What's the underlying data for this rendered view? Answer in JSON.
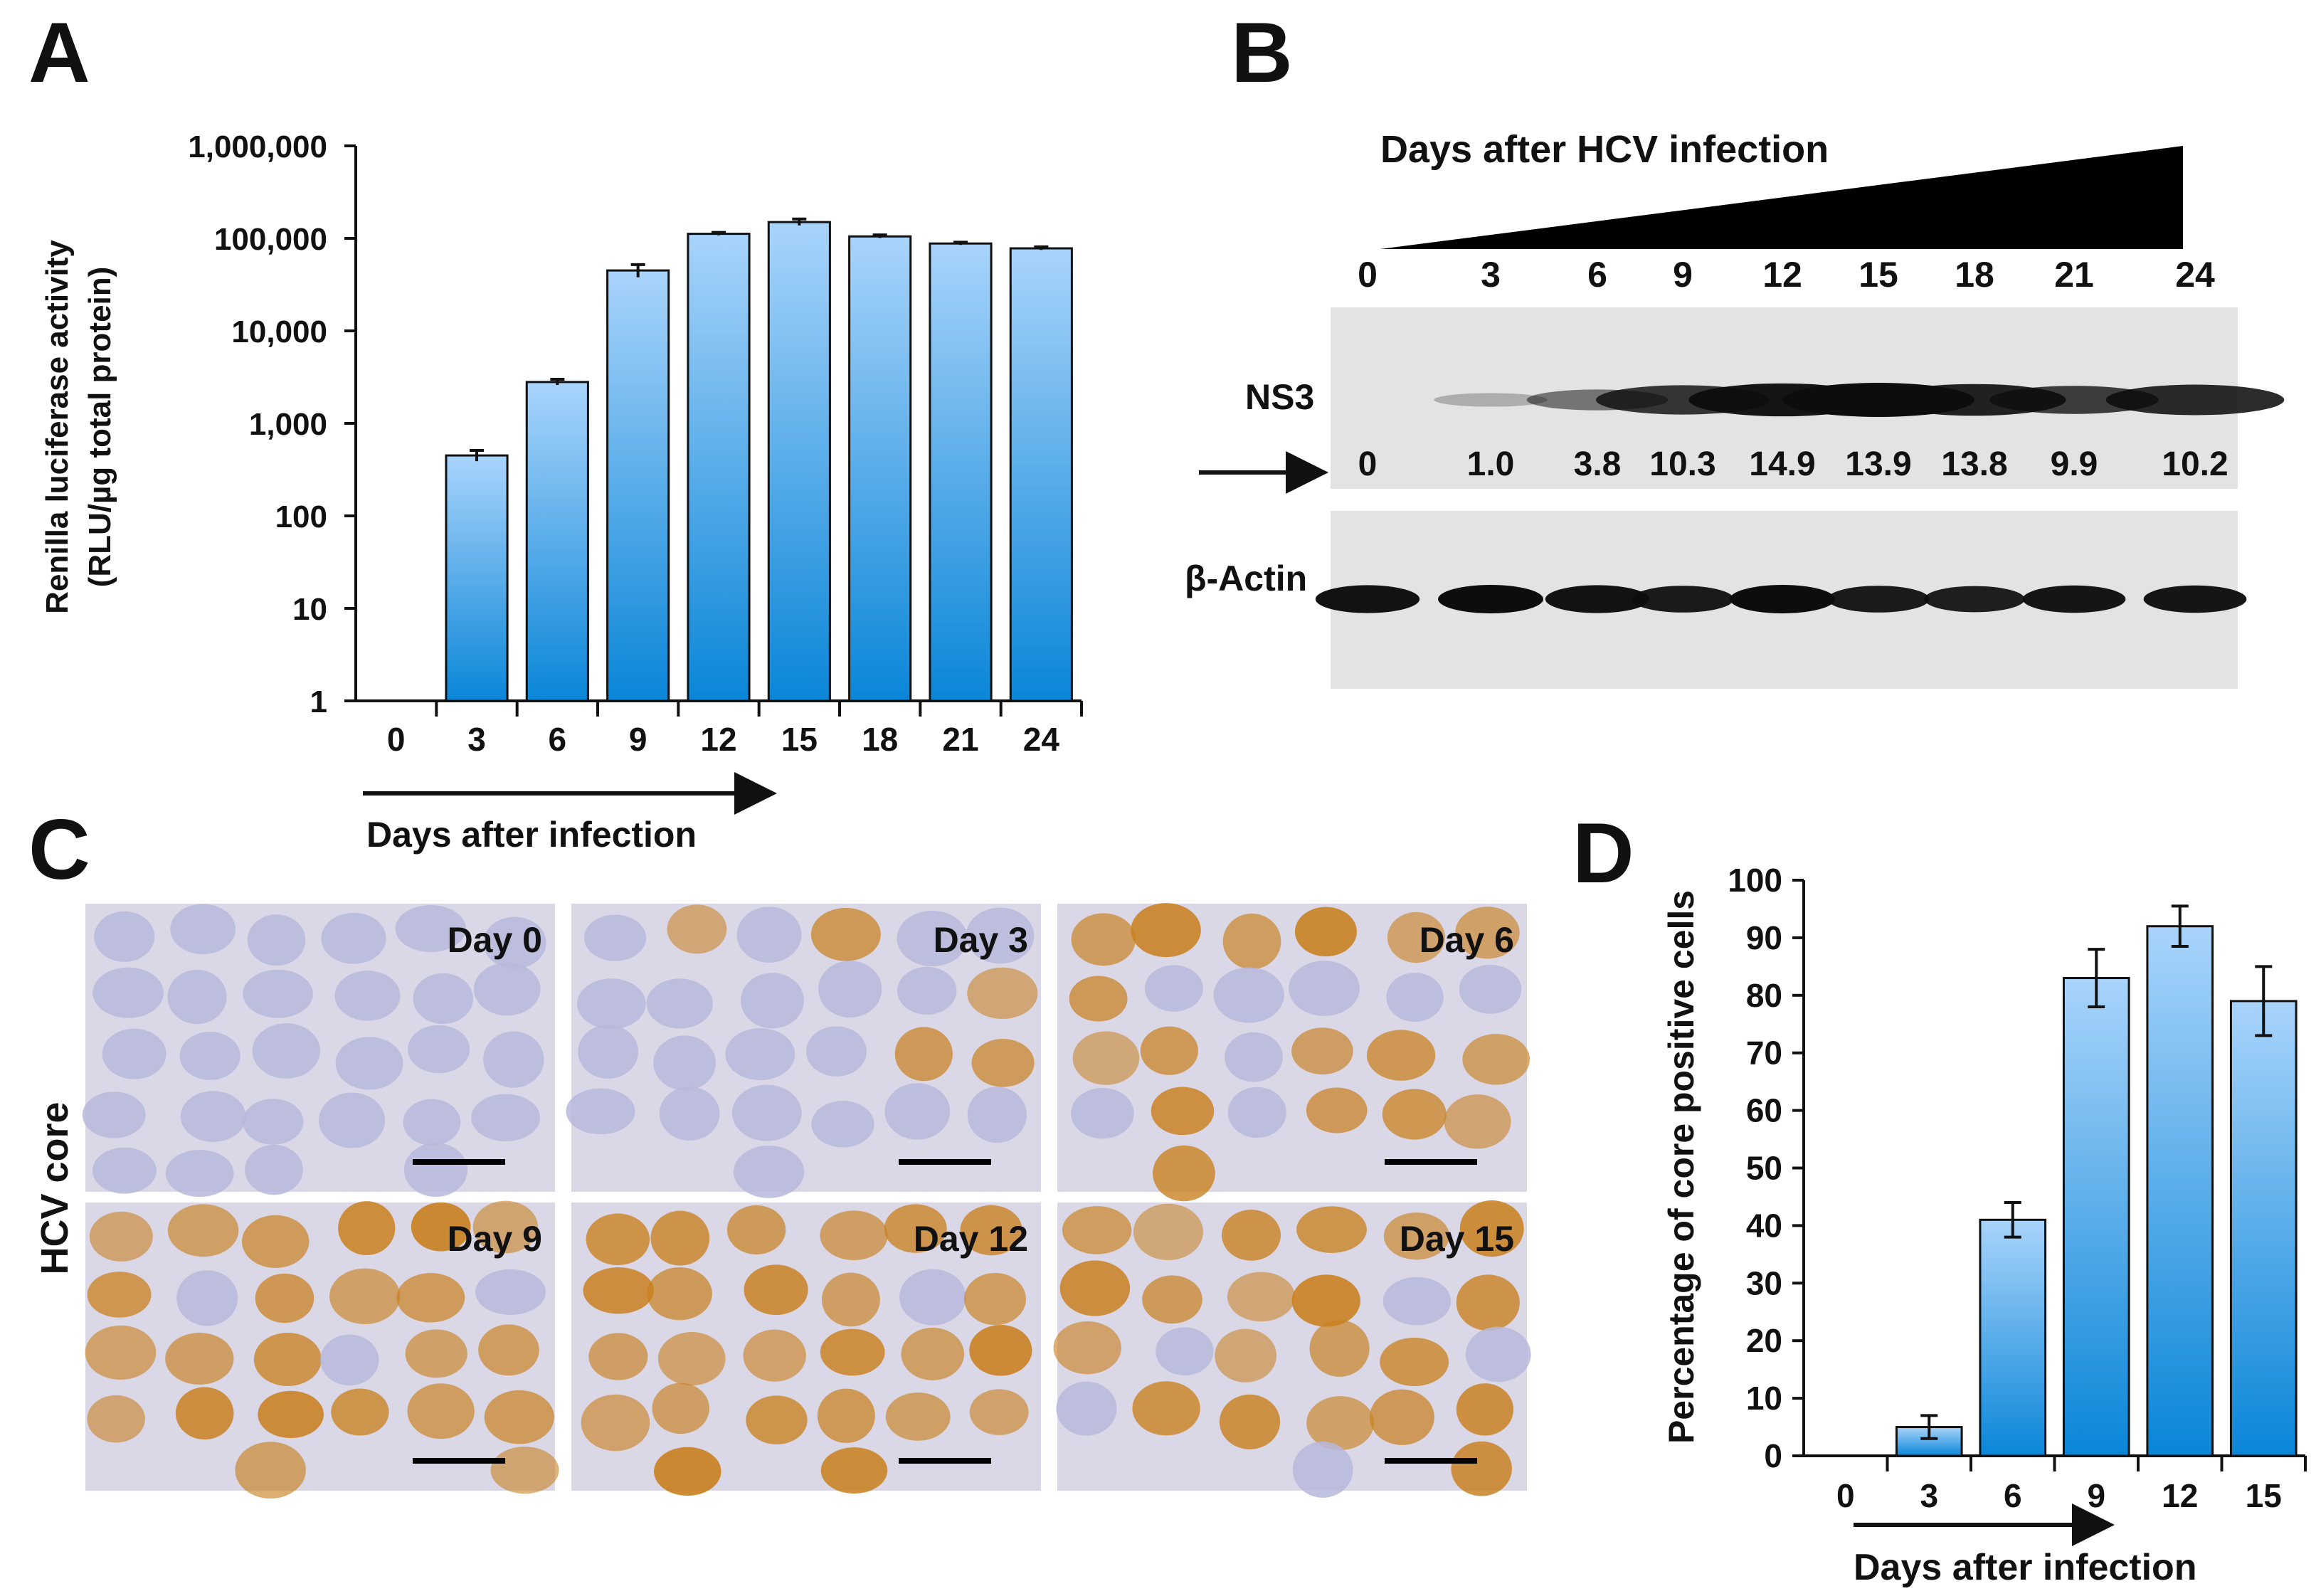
{
  "colors": {
    "bar_top": "#a9d4fb",
    "bar_bottom": "#0a86d8",
    "axis": "#111111",
    "blot_bg": "#e3e3e3",
    "band": "#0d0d0d",
    "stain_bg": "#dad7e6",
    "nucleus": "#b7b8dc",
    "stain_brown": "#c9801e"
  },
  "panels": {
    "A": {
      "label": "A"
    },
    "B": {
      "label": "B",
      "header": "Days after HCV infection",
      "days": [
        "0",
        "3",
        "6",
        "9",
        "12",
        "15",
        "18",
        "21",
        "24"
      ],
      "ns3_label": "NS3",
      "actin_label": "β-Actin",
      "quant_labels": [
        "0",
        "1.0",
        "3.8",
        "10.3",
        "14.9",
        "13.9",
        "13.8",
        "9.9",
        "10.2"
      ],
      "ns3_intensity": [
        0,
        0.15,
        0.45,
        0.8,
        0.95,
        1.0,
        0.9,
        0.75,
        0.85
      ],
      "actin_intensity": [
        0.95,
        1.0,
        0.95,
        0.85,
        1.0,
        0.85,
        0.8,
        0.9,
        0.9
      ]
    },
    "C": {
      "label": "C",
      "side_label": "HCV core",
      "images": [
        {
          "title": "Day 0",
          "stain": 0.0
        },
        {
          "title": "Day 3",
          "stain": 0.15
        },
        {
          "title": "Day 6",
          "stain": 0.55
        },
        {
          "title": "Day 9",
          "stain": 0.85
        },
        {
          "title": "Day 12",
          "stain": 0.95
        },
        {
          "title": "Day 15",
          "stain": 0.8
        }
      ]
    },
    "D": {
      "label": "D"
    }
  },
  "chart_data": [
    {
      "id": "A",
      "type": "bar",
      "scale": "log10",
      "categories": [
        "0",
        "3",
        "6",
        "9",
        "12",
        "15",
        "18",
        "21",
        "24"
      ],
      "values": [
        0,
        450,
        2800,
        45000,
        112000,
        150000,
        105000,
        88000,
        78000
      ],
      "errors": [
        0,
        60,
        200,
        7000,
        4000,
        12000,
        4000,
        3000,
        3000
      ],
      "ylabel_line1": "Renilla luciferase activity",
      "ylabel_line2": "(RLU/µg total protein)",
      "yticks": [
        "1",
        "10",
        "100",
        "1,000",
        "10,000",
        "100,000",
        "1,000,000"
      ],
      "ylim": [
        1,
        1000000
      ],
      "xlabel": "Days after infection"
    },
    {
      "id": "D",
      "type": "bar",
      "categories": [
        "0",
        "3",
        "6",
        "9",
        "12",
        "15"
      ],
      "values": [
        0,
        5,
        41,
        83,
        92,
        79
      ],
      "errors": [
        0,
        2,
        3,
        5,
        3.5,
        6
      ],
      "ylabel": "Percentage of core positive cells",
      "yticks": [
        "0",
        "10",
        "20",
        "30",
        "40",
        "50",
        "60",
        "70",
        "80",
        "90",
        "100"
      ],
      "ylim": [
        0,
        100
      ],
      "xlabel": "Days after infection"
    }
  ]
}
